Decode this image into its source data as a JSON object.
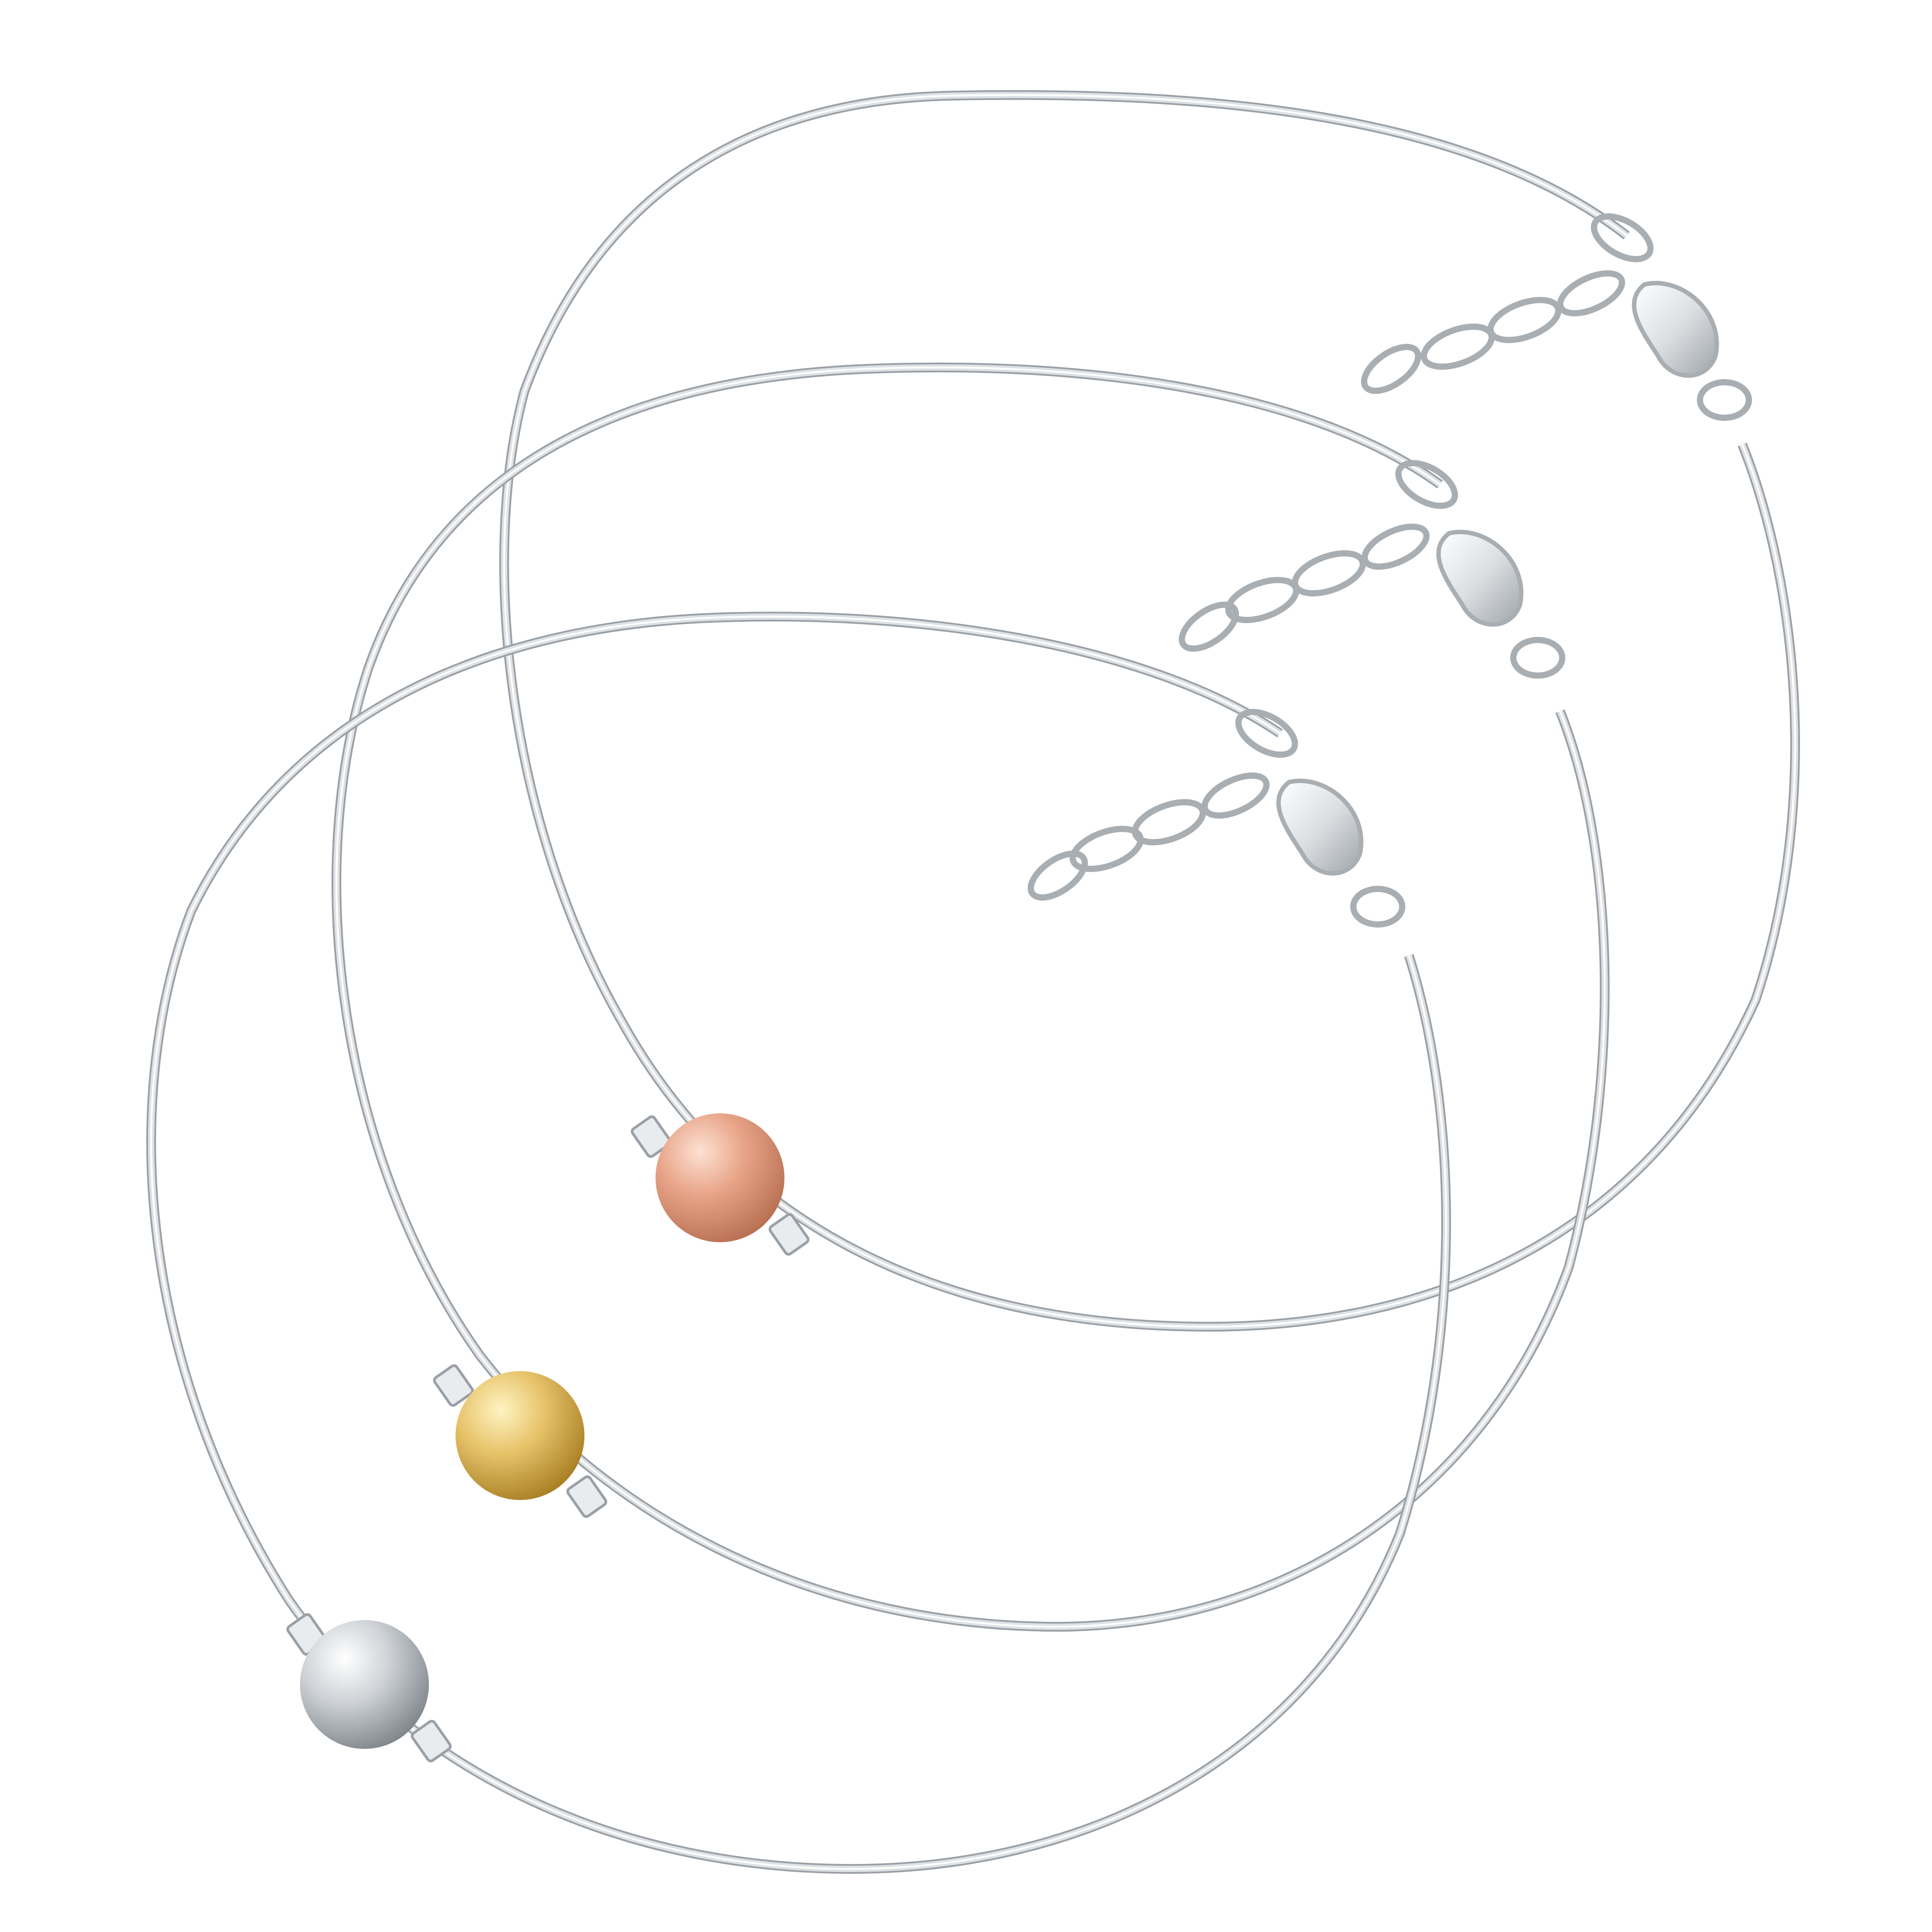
{
  "image": {
    "background": "#ffffff",
    "subject": "three-bangle-set"
  },
  "bracelets": [
    {
      "id": "rose",
      "metal": "rose-gold",
      "bead_colors": {
        "light": "#fde1d3",
        "mid": "#e8a488",
        "dark": "#b86f52"
      }
    },
    {
      "id": "yellow",
      "metal": "yellow-gold",
      "bead_colors": {
        "light": "#fff4c4",
        "mid": "#e7c36a",
        "dark": "#a87f23"
      }
    },
    {
      "id": "silver",
      "metal": "sterling-silver",
      "bead_colors": {
        "light": "#ffffff",
        "mid": "#cfd3d7",
        "dark": "#7f868c"
      }
    }
  ],
  "wire_color": "#c9cdd1"
}
